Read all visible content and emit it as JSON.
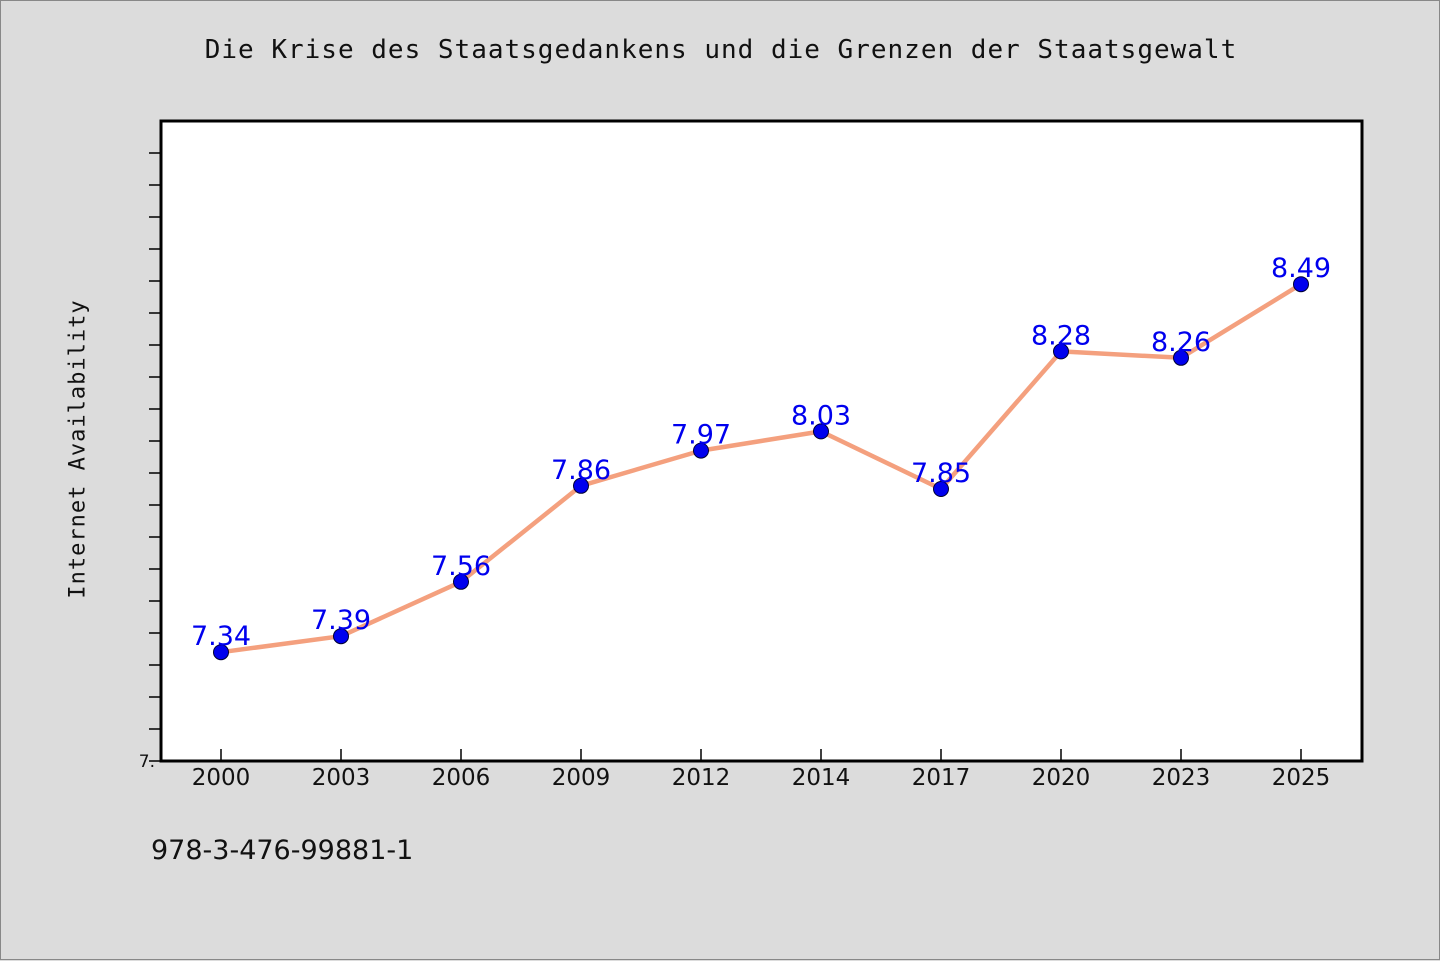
{
  "chart_data": {
    "type": "line",
    "title": "Die Krise des Staatsgedanken​s und die Grenzen der Staatsgewalt",
    "xlabel": "",
    "ylabel": "Internet Availability",
    "categories": [
      "2000",
      "2003",
      "2006",
      "2009",
      "2012",
      "2014",
      "2017",
      "2020",
      "2023",
      "2025"
    ],
    "series": [
      {
        "values": [
          7.34,
          7.39,
          7.56,
          7.86,
          7.97,
          8.03,
          7.85,
          8.28,
          8.26,
          8.49
        ],
        "data_labels": [
          "7.34",
          "7.39",
          "7.56",
          "7.86",
          "7.97",
          "8.03",
          "7.85",
          "8.28",
          "8.26",
          "8.49"
        ],
        "line_color": "#f4a07e",
        "marker_color": "#0000ee",
        "label_color": "#0000ee"
      }
    ],
    "ylim": [
      7.0,
      9.0
    ],
    "y_tick_labels": [
      "7."
    ],
    "grid": false,
    "legend": "none"
  },
  "footer": {
    "isbn": "978-3-476-99881-1"
  },
  "colors": {
    "background": "#dcdcdc",
    "plot_background": "#ffffff",
    "axis": "#000000"
  }
}
